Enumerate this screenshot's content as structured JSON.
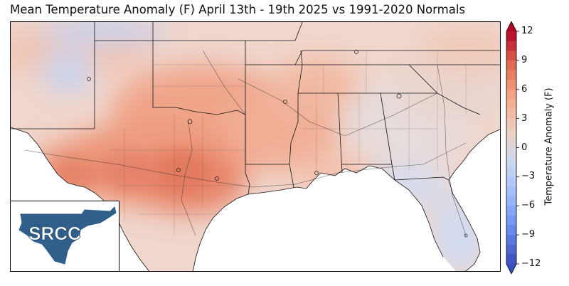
{
  "title": "Mean Temperature Anomaly (F) April 13th - 19th 2025 vs 1991-2020 Normals",
  "logo": {
    "text": "SRCC"
  },
  "colorbar": {
    "label": "Temperature Anomaly (F)",
    "min": -12,
    "max": 12,
    "ticks": [
      12,
      9,
      6,
      3,
      0,
      -3,
      -6,
      -9,
      -12
    ],
    "tick_labels": [
      "12",
      "9",
      "6",
      "3",
      "0",
      "−3",
      "−6",
      "−9",
      "−12"
    ],
    "extend": "both",
    "palette": [
      "#3b4cc0",
      "#6788ee",
      "#9abbff",
      "#c9d7f0",
      "#edd1c2",
      "#f7a889",
      "#e26952",
      "#b40426"
    ]
  },
  "map": {
    "region": "Southern United States",
    "land_color": "#f2dcd3",
    "water_color": "#ffffff",
    "border_color": "#000000"
  }
}
